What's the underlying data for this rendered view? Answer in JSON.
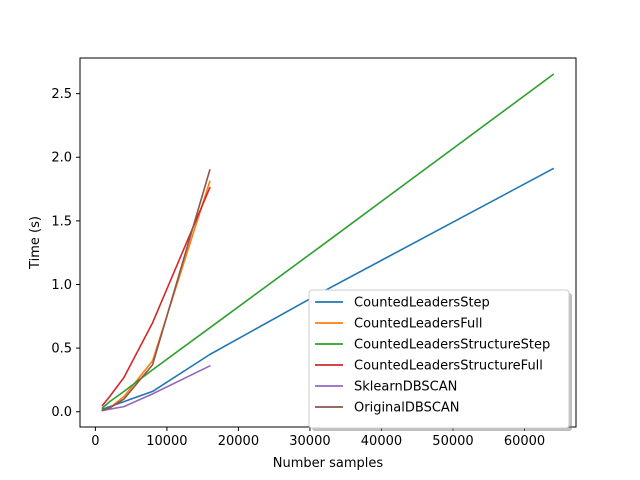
{
  "chart_data": {
    "type": "line",
    "title": "",
    "xlabel": "Number samples",
    "ylabel": "Time (s)",
    "xlim": [
      -2150,
      67200
    ],
    "ylim": [
      -0.12,
      2.78
    ],
    "xticks": [
      0,
      10000,
      20000,
      30000,
      40000,
      50000,
      60000
    ],
    "yticks": [
      0.0,
      0.5,
      1.0,
      1.5,
      2.0,
      2.5
    ],
    "xtick_labels": [
      "0",
      "10000",
      "20000",
      "30000",
      "40000",
      "50000",
      "60000"
    ],
    "ytick_labels": [
      "0.0",
      "0.5",
      "1.0",
      "1.5",
      "2.0",
      "2.5"
    ],
    "grid": false,
    "legend_position": "lower-right",
    "series": [
      {
        "name": "CountedLeadersStep",
        "color": "#1f77b4",
        "x": [
          1000,
          2000,
          4000,
          8000,
          16000,
          32000,
          64000
        ],
        "y": [
          0.02,
          0.04,
          0.08,
          0.16,
          0.45,
          0.95,
          1.91
        ]
      },
      {
        "name": "CountedLeadersFull",
        "color": "#ff7f0e",
        "x": [
          1000,
          2000,
          4000,
          8000,
          16000
        ],
        "y": [
          0.01,
          0.03,
          0.12,
          0.4,
          1.81
        ]
      },
      {
        "name": "CountedLeadersStructureStep",
        "color": "#2ca02c",
        "x": [
          1000,
          2000,
          4000,
          8000,
          16000,
          32000,
          64000
        ],
        "y": [
          0.03,
          0.08,
          0.16,
          0.33,
          0.66,
          1.32,
          2.65
        ]
      },
      {
        "name": "CountedLeadersStructureFull",
        "color": "#d62728",
        "x": [
          1000,
          2000,
          4000,
          8000,
          16000
        ],
        "y": [
          0.05,
          0.12,
          0.27,
          0.7,
          1.76
        ]
      },
      {
        "name": "SklearnDBSCAN",
        "color": "#9467bd",
        "x": [
          1000,
          2000,
          4000,
          8000,
          16000
        ],
        "y": [
          0.01,
          0.02,
          0.04,
          0.14,
          0.36
        ]
      },
      {
        "name": "OriginalDBSCAN",
        "color": "#8c564b",
        "x": [
          1000,
          2000,
          4000,
          8000,
          16000
        ],
        "y": [
          0.01,
          0.03,
          0.1,
          0.37,
          1.9
        ]
      }
    ]
  }
}
